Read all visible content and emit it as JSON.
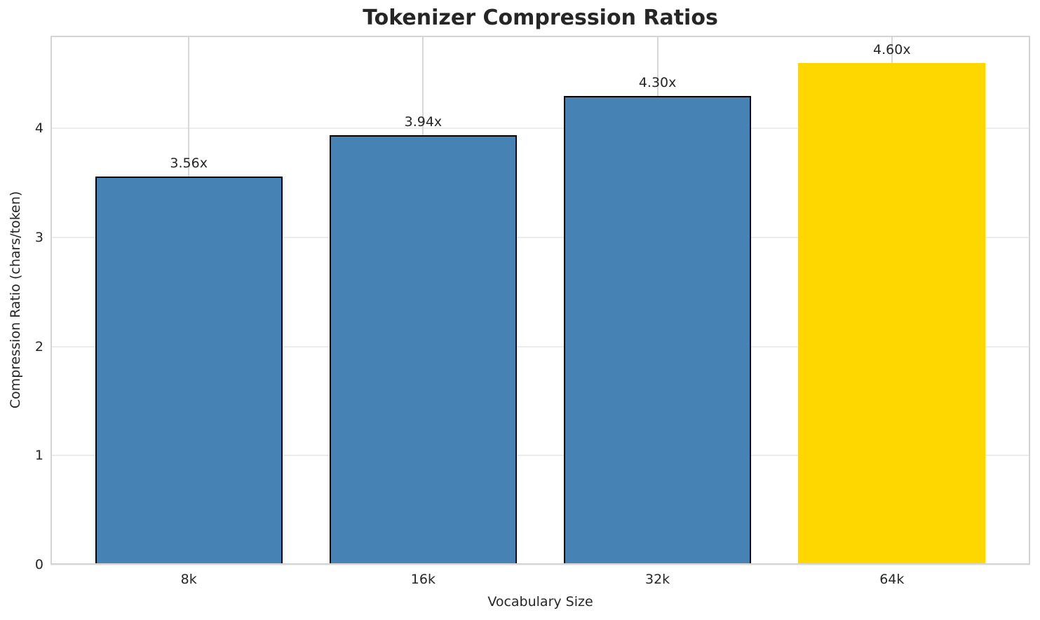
{
  "chart_data": {
    "type": "bar",
    "title": "Tokenizer Compression Ratios",
    "xlabel": "Vocabulary Size",
    "ylabel": "Compression Ratio (chars/token)",
    "categories": [
      "8k",
      "16k",
      "32k",
      "64k"
    ],
    "values": [
      3.56,
      3.94,
      4.3,
      4.6
    ],
    "bar_labels": [
      "3.56x",
      "3.94x",
      "4.30x",
      "4.60x"
    ],
    "bar_colors": [
      "#4682B4",
      "#4682B4",
      "#4682B4",
      "#FFD700"
    ],
    "bar_edge_colors": [
      "#000000",
      "#000000",
      "#000000",
      "none"
    ],
    "yticks": [
      "0",
      "1",
      "2",
      "3",
      "4"
    ],
    "ytick_values": [
      0,
      1,
      2,
      3,
      4
    ],
    "ylim": [
      0,
      4.85
    ],
    "grid": true,
    "legend_position": "none",
    "primary_color": "#4682B4",
    "highlight_color": "#FFD700",
    "title_color": "#262626",
    "text_color": "#262626",
    "grid_color_h": "#ececec",
    "grid_color_v": "#d8d8d8"
  }
}
